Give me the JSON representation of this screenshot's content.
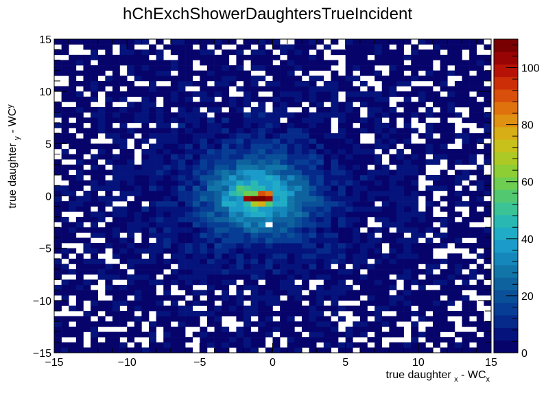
{
  "chart_data": {
    "type": "heatmap",
    "title": "hChExchShowerDaughtersTrueIncident",
    "xlabel": "true daughter x - WC x",
    "xlabel_parts": {
      "main": "true daughter ",
      "sub1": "x",
      "mid": " - WC",
      "sub2": "x"
    },
    "ylabel": "true daughter y - WC y",
    "ylabel_parts": {
      "main": "true daughter ",
      "sub1": "y",
      "mid": " - WC",
      "sub2": "y"
    },
    "xlim": [
      -15,
      15
    ],
    "ylim": [
      -15,
      15
    ],
    "zlim": [
      0,
      110
    ],
    "bins": {
      "nx": 60,
      "ny": 60
    },
    "xticks": [
      "-15",
      "-10",
      "-5",
      "0",
      "5",
      "10",
      "15"
    ],
    "yticks": [
      "-15",
      "-10",
      "-5",
      "0",
      "5",
      "10",
      "15"
    ],
    "zticks": [
      "0",
      "20",
      "40",
      "60",
      "80",
      "100"
    ],
    "colorbar_colors": [
      "#06046b",
      "#05137c",
      "#062a8a",
      "#073d94",
      "#0a5099",
      "#0e629e",
      "#1275a8",
      "#1687bb",
      "#1a9bc9",
      "#20acc6",
      "#29b9b2",
      "#3bc295",
      "#52c970",
      "#6dce52",
      "#8dce35",
      "#acc926",
      "#c8c11c",
      "#d8ae16",
      "#df9212",
      "#e0720e",
      "#d8500b",
      "#cc2f08",
      "#b61205",
      "#980403",
      "#780000"
    ],
    "peak": {
      "description": "Dense core of counts near the origin",
      "cells": [
        {
          "x": -1.75,
          "y": -0.25,
          "value": 105
        },
        {
          "x": -1.25,
          "y": -0.25,
          "value": 108
        },
        {
          "x": -0.75,
          "y": -0.25,
          "value": 106
        },
        {
          "x": -0.25,
          "y": -0.25,
          "value": 104
        },
        {
          "x": -0.75,
          "y": 0.25,
          "value": 88
        },
        {
          "x": -0.25,
          "y": 0.25,
          "value": 84
        },
        {
          "x": -1.25,
          "y": 0.25,
          "value": 60
        },
        {
          "x": -0.75,
          "y": -0.75,
          "value": 78
        },
        {
          "x": -1.25,
          "y": -0.75,
          "value": 66
        },
        {
          "x": -1.75,
          "y": 0.25,
          "value": 58
        },
        {
          "x": -2.25,
          "y": 0.75,
          "value": 55
        },
        {
          "x": -1.75,
          "y": 0.75,
          "value": 52
        },
        {
          "x": -2.75,
          "y": 0.25,
          "value": 47
        },
        {
          "x": -2.25,
          "y": 0.25,
          "value": 50
        },
        {
          "x": -1.25,
          "y": 1.25,
          "value": 48
        },
        {
          "x": -2.25,
          "y": 1.25,
          "value": 42
        },
        {
          "x": -0.25,
          "y": -0.75,
          "value": 56
        },
        {
          "x": -1.75,
          "y": -0.75,
          "value": 45
        },
        {
          "x": 0.25,
          "y": 0.25,
          "value": 40
        },
        {
          "x": -3.25,
          "y": -0.75,
          "value": 40
        },
        {
          "x": -0.25,
          "y": -2.75,
          "value": 0
        }
      ],
      "center_x": -1.0,
      "center_y": 0.0,
      "sigma": 2.4,
      "amplitude": 42
    }
  }
}
